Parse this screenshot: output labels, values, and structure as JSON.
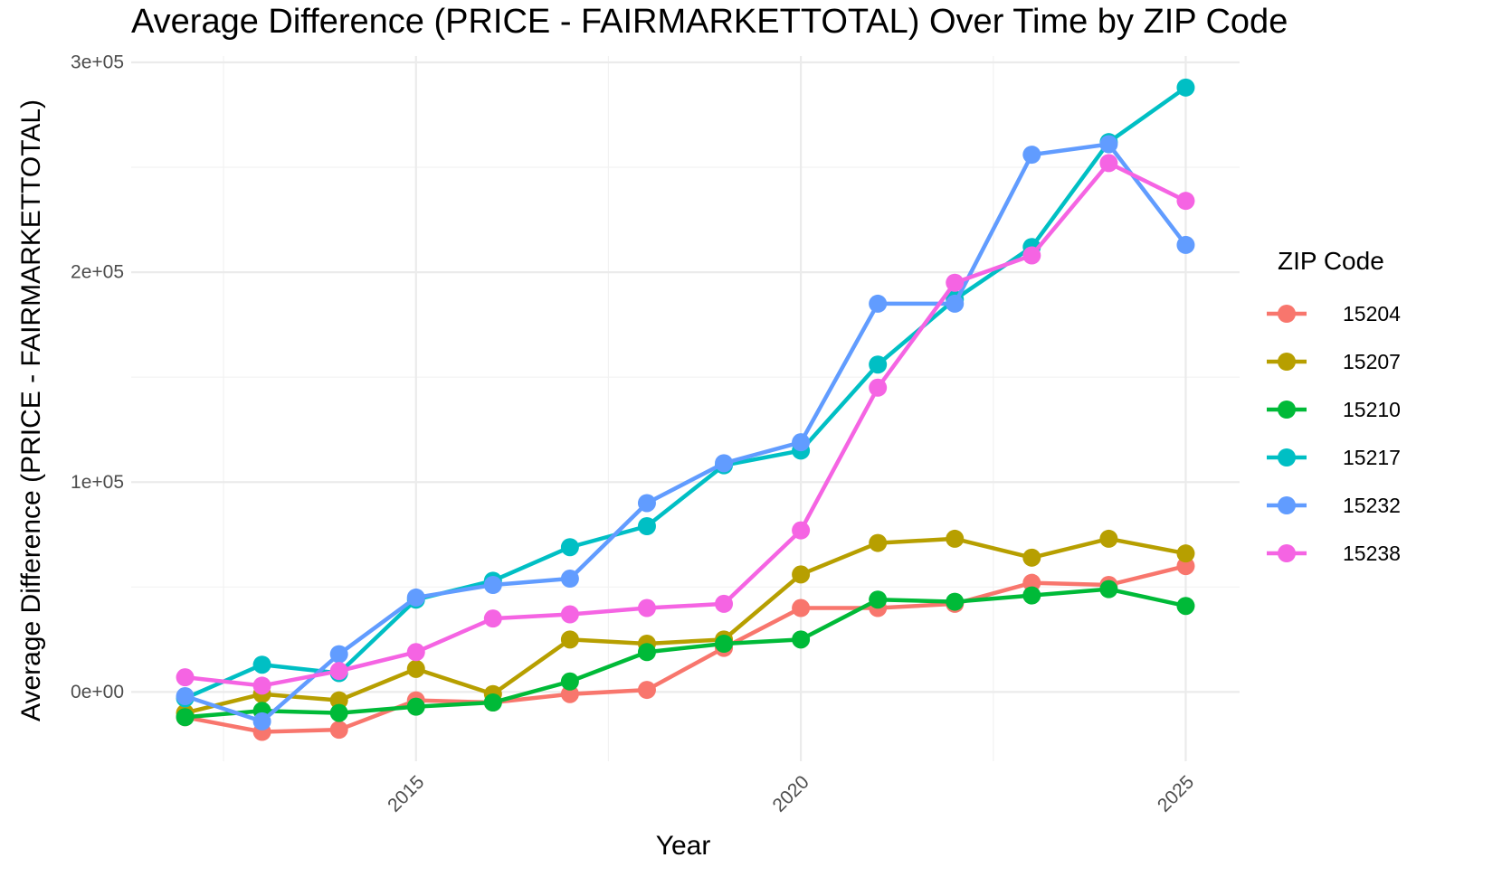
{
  "chart_data": {
    "type": "line",
    "title": "Average Difference (PRICE - FAIRMARKETTOTAL) Over Time by ZIP Code",
    "xlabel": "Year",
    "ylabel": "Average Difference (PRICE - FAIRMARKETTOTAL)",
    "xlim": [
      2011.3,
      2025.7
    ],
    "ylim": [
      -33000,
      303000
    ],
    "x_ticks": [
      2015,
      2020,
      2025
    ],
    "x_tick_labels": [
      "2015",
      "2020",
      "2025"
    ],
    "y_ticks": [
      0,
      100000,
      200000,
      300000
    ],
    "y_tick_labels": [
      "0e+00",
      "1e+05",
      "2e+05",
      "3e+05"
    ],
    "grid": true,
    "legend_title": "ZIP Code",
    "legend_position": "right",
    "x": [
      2012,
      2013,
      2014,
      2015,
      2016,
      2017,
      2018,
      2019,
      2020,
      2021,
      2022,
      2023,
      2024,
      2025
    ],
    "series": [
      {
        "name": "15204",
        "color": "#F8766D",
        "values": [
          -12000,
          -19000,
          -18000,
          -4000,
          -5000,
          -1000,
          1000,
          21000,
          40000,
          40000,
          42000,
          52000,
          51000,
          60000
        ]
      },
      {
        "name": "15207",
        "color": "#B79F00",
        "values": [
          -10000,
          -1000,
          -4000,
          11000,
          -1000,
          25000,
          23000,
          25000,
          56000,
          71000,
          73000,
          64000,
          73000,
          66000
        ]
      },
      {
        "name": "15210",
        "color": "#00BA38",
        "values": [
          -12000,
          -9000,
          -10000,
          -7000,
          -5000,
          5000,
          19000,
          23000,
          25000,
          44000,
          43000,
          46000,
          49000,
          41000
        ]
      },
      {
        "name": "15217",
        "color": "#00BFC4",
        "values": [
          -3000,
          13000,
          9000,
          44000,
          53000,
          69000,
          79000,
          108000,
          115000,
          156000,
          187000,
          212000,
          262000,
          288000
        ]
      },
      {
        "name": "15232",
        "color": "#619CFF",
        "values": [
          -2000,
          -14000,
          18000,
          45000,
          51000,
          54000,
          90000,
          109000,
          119000,
          185000,
          185000,
          256000,
          261000,
          213000
        ]
      },
      {
        "name": "15238",
        "color": "#F564E3",
        "values": [
          7000,
          3000,
          10000,
          19000,
          35000,
          37000,
          40000,
          42000,
          77000,
          145000,
          195000,
          208000,
          252000,
          234000
        ]
      }
    ]
  }
}
